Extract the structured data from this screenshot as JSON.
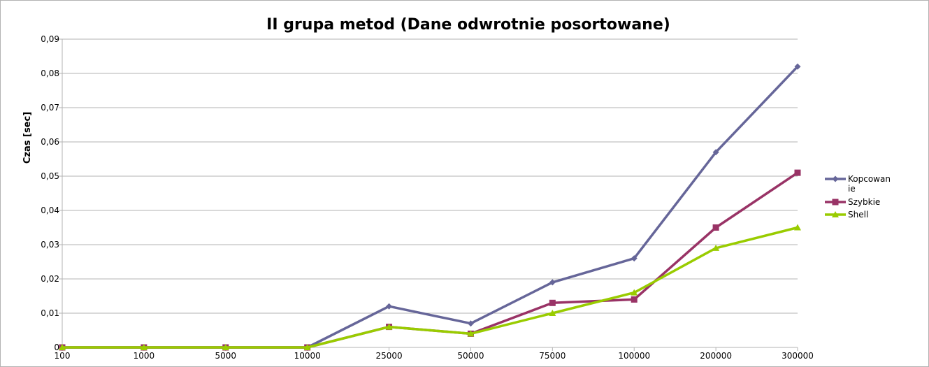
{
  "chart_data": {
    "type": "line",
    "title": "II grupa metod (Dane odwrotnie posortowane)",
    "ylabel": "Czas [sec]",
    "xlabel": "",
    "categories": [
      "100",
      "1000",
      "5000",
      "10000",
      "25000",
      "50000",
      "75000",
      "100000",
      "200000",
      "300000"
    ],
    "ylim": [
      0,
      0.09
    ],
    "yticks": [
      0,
      0.01,
      0.02,
      0.03,
      0.04,
      0.05,
      0.06,
      0.07,
      0.08,
      0.09
    ],
    "ytick_labels": [
      "0",
      "0,01",
      "0,02",
      "0,03",
      "0,04",
      "0,05",
      "0,06",
      "0,07",
      "0,08",
      "0,09"
    ],
    "grid": true,
    "legend_position": "right",
    "series": [
      {
        "name": "Kopcowanie",
        "legend_lines": [
          "Kopcowan",
          "ie"
        ],
        "color": "#666699",
        "marker": "diamond",
        "values": [
          0,
          0,
          0,
          0,
          0.012,
          0.007,
          0.019,
          0.026,
          0.057,
          0.082
        ]
      },
      {
        "name": "Szybkie",
        "legend_lines": [
          "Szybkie"
        ],
        "color": "#993366",
        "marker": "square",
        "values": [
          0,
          0,
          0,
          0,
          0.006,
          0.004,
          0.013,
          0.014,
          0.035,
          0.051
        ]
      },
      {
        "name": "Shell",
        "legend_lines": [
          "Shell"
        ],
        "color": "#99cc00",
        "marker": "triangle",
        "values": [
          0,
          0,
          0,
          0,
          0.006,
          0.004,
          0.01,
          0.016,
          0.029,
          0.035
        ]
      }
    ]
  }
}
